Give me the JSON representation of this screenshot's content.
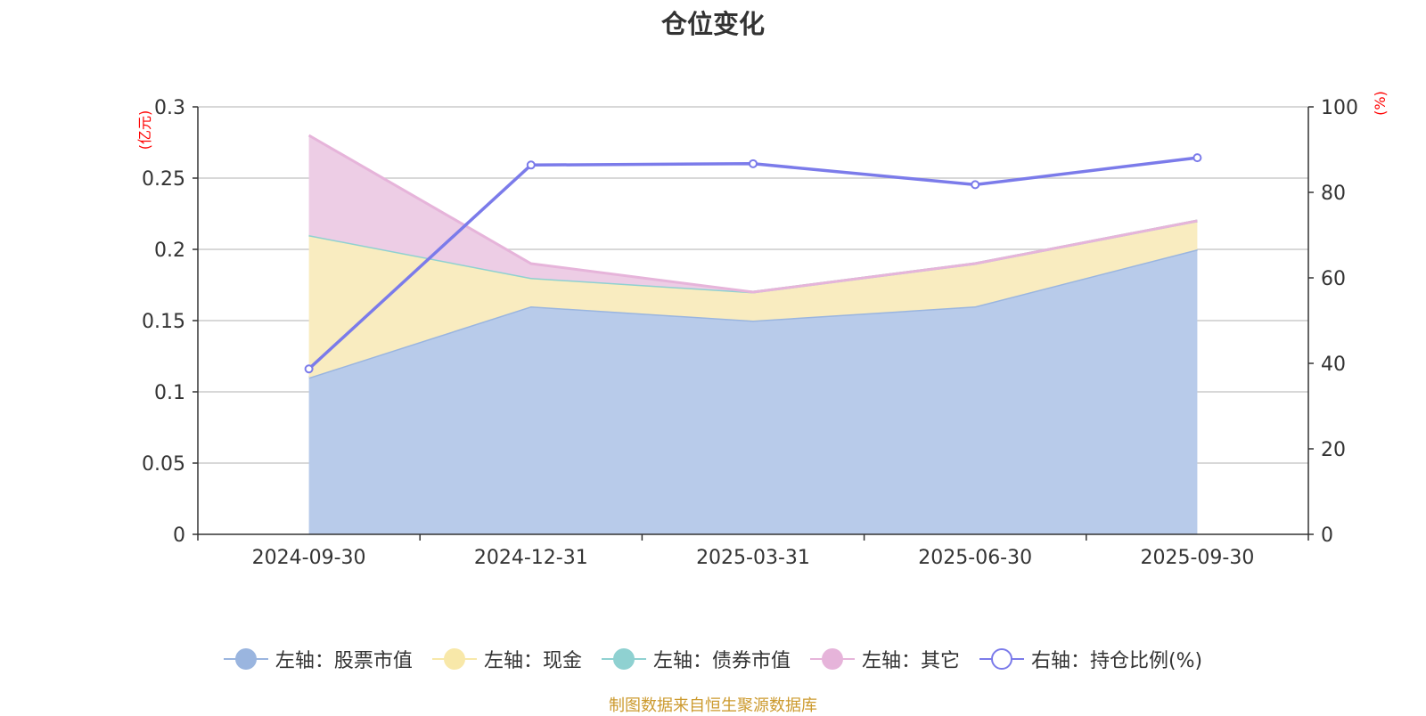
{
  "chart_data": {
    "type": "area",
    "title": "仓位变化",
    "categories": [
      "2024-09-30",
      "2024-12-31",
      "2025-03-31",
      "2025-06-30",
      "2025-09-30"
    ],
    "left_axis": {
      "unit": "(亿元)",
      "ylim": [
        0,
        0.3
      ],
      "ticks": [
        "0",
        "0.05",
        "0.1",
        "0.15",
        "0.2",
        "0.25",
        "0.3"
      ]
    },
    "right_axis": {
      "unit": "(%)",
      "ylim": [
        0,
        100
      ],
      "ticks": [
        "0",
        "20",
        "40",
        "60",
        "80",
        "100"
      ]
    },
    "grid": true,
    "legend_position": "bottom",
    "stacked": true,
    "series": [
      {
        "name": "左轴：股票市值",
        "axis": "left",
        "kind": "area",
        "color": "#9ab5df",
        "fill": "#b8cbea",
        "values": [
          0.11,
          0.16,
          0.15,
          0.16,
          0.2
        ]
      },
      {
        "name": "左轴：现金",
        "axis": "left",
        "kind": "area",
        "color": "#f8e8a9",
        "fill": "#f9ecc0",
        "values": [
          0.1,
          0.02,
          0.02,
          0.03,
          0.02
        ]
      },
      {
        "name": "左轴：债券市值",
        "axis": "left",
        "kind": "area",
        "color": "#8fd1d1",
        "fill": "#b6e1e1",
        "values": [
          0,
          0,
          0,
          0,
          0
        ]
      },
      {
        "name": "左轴：其它",
        "axis": "left",
        "kind": "area",
        "color": "#e6b4da",
        "fill": "#edcde5",
        "values": [
          0.07,
          0.01,
          0,
          0,
          0
        ]
      },
      {
        "name": "右轴：持仓比例(%)",
        "axis": "right",
        "kind": "line",
        "color": "#7b7bea",
        "values": [
          38.7,
          86.4,
          86.7,
          81.8,
          88.1
        ]
      }
    ],
    "source": "制图数据来自恒生聚源数据库"
  }
}
